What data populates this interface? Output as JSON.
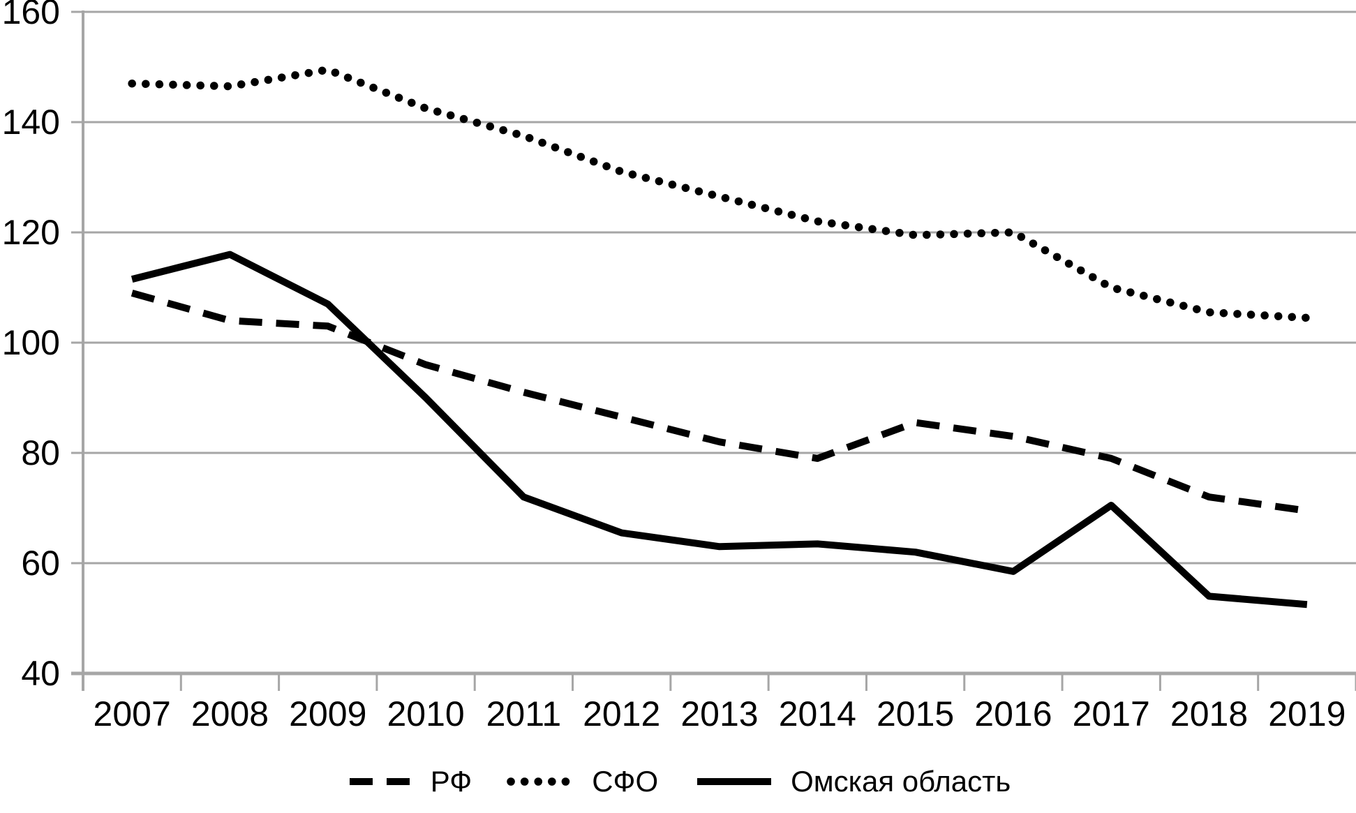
{
  "chart_data": {
    "type": "line",
    "title": "",
    "xlabel": "",
    "ylabel": "",
    "x": [
      "2007",
      "2008",
      "2009",
      "2010",
      "2011",
      "2012",
      "2013",
      "2014",
      "2015",
      "2016",
      "2017",
      "2018",
      "2019"
    ],
    "series": [
      {
        "name": "РФ",
        "style": "dashed",
        "values": [
          109,
          104,
          103,
          96,
          91,
          86.5,
          82,
          79,
          85.5,
          83,
          79,
          72,
          69.5
        ]
      },
      {
        "name": "СФО",
        "style": "dotted",
        "values": [
          147,
          146.5,
          149.5,
          142.5,
          137.5,
          131,
          126.5,
          122,
          119.5,
          120,
          110,
          105.5,
          104.5
        ]
      },
      {
        "name": "Омская область",
        "style": "solid",
        "values": [
          111.5,
          116,
          107,
          90,
          72,
          65.5,
          63,
          63.5,
          62,
          58.5,
          70.5,
          54,
          52.5
        ]
      }
    ],
    "ylim": [
      40,
      160
    ],
    "yticks": [
      40,
      60,
      80,
      100,
      120,
      140,
      160
    ],
    "grid": "horizontal",
    "legend_position": "bottom",
    "colors": {
      "line": "#000000",
      "grid": "#a6a6a6",
      "background": "#ffffff",
      "text": "#000000"
    }
  }
}
